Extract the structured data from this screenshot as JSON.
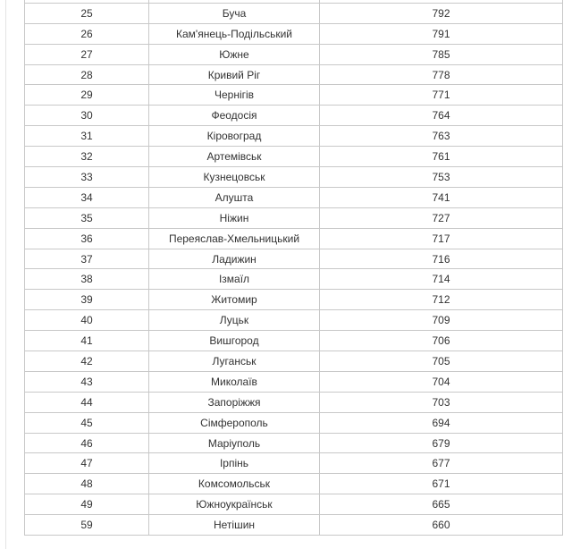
{
  "table": {
    "rows": [
      [
        "",
        "",
        ""
      ],
      [
        "25",
        "Буча",
        "792"
      ],
      [
        "26",
        "Кам'янець-Подільський",
        "791"
      ],
      [
        "27",
        "Южне",
        "785"
      ],
      [
        "28",
        "Кривий Ріг",
        "778"
      ],
      [
        "29",
        "Чернігів",
        "771"
      ],
      [
        "30",
        "Феодосія",
        "764"
      ],
      [
        "31",
        "Кіровоград",
        "763"
      ],
      [
        "32",
        "Артемівськ",
        "761"
      ],
      [
        "33",
        "Кузнецовськ",
        "753"
      ],
      [
        "34",
        "Алушта",
        "741"
      ],
      [
        "35",
        "Ніжин",
        "727"
      ],
      [
        "36",
        "Переяслав-Хмельницький",
        "717"
      ],
      [
        "37",
        "Ладижин",
        "716"
      ],
      [
        "38",
        "Ізмаїл",
        "714"
      ],
      [
        "39",
        "Житомир",
        "712"
      ],
      [
        "40",
        "Луцьк",
        "709"
      ],
      [
        "41",
        "Вишгород",
        "706"
      ],
      [
        "42",
        "Луганськ",
        "705"
      ],
      [
        "43",
        "Миколаїв",
        "704"
      ],
      [
        "44",
        "Запоріжжя",
        "703"
      ],
      [
        "45",
        "Сімферополь",
        "694"
      ],
      [
        "46",
        "Маріуполь",
        "679"
      ],
      [
        "47",
        "Ірпінь",
        "677"
      ],
      [
        "48",
        "Комсомольськ",
        "671"
      ],
      [
        "49",
        "Южноукраїнськ",
        "665"
      ],
      [
        "59",
        "Нетішин",
        "660"
      ]
    ]
  }
}
